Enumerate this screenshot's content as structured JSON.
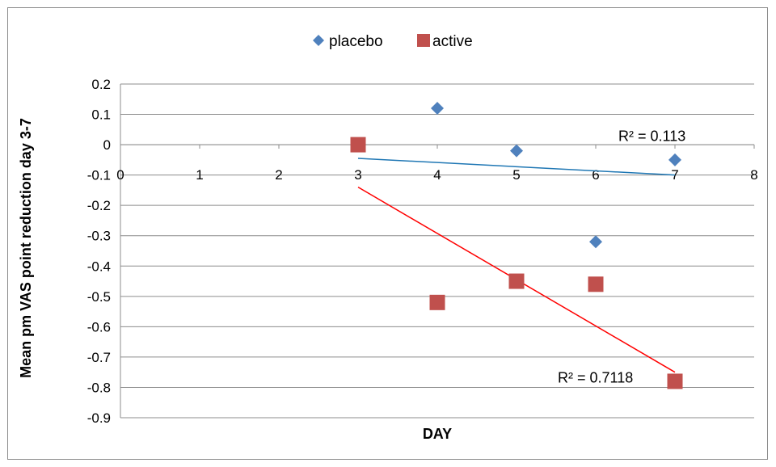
{
  "chart_data": {
    "type": "scatter",
    "xlabel": "DAY",
    "ylabel": "Mean pm VAS point reduction day 3-7",
    "xlim": [
      0,
      8
    ],
    "ylim": [
      -0.9,
      0.2
    ],
    "x_ticks": [
      "0",
      "1",
      "2",
      "3",
      "4",
      "5",
      "6",
      "7",
      "8"
    ],
    "y_ticks": [
      "0.2",
      "0.1",
      "0",
      "-0.1",
      "-0.2",
      "-0.3",
      "-0.4",
      "-0.5",
      "-0.6",
      "-0.7",
      "-0.8",
      "-0.9"
    ],
    "grid": "horizontal",
    "legend_position": "top",
    "series": [
      {
        "name": "placebo",
        "marker": "diamond",
        "color": "#4f81bd",
        "points": [
          [
            4,
            0.12
          ],
          [
            5,
            -0.02
          ],
          [
            6,
            -0.32
          ],
          [
            7,
            -0.05
          ]
        ],
        "trendline": {
          "x": [
            3,
            7
          ],
          "y": [
            -0.045,
            -0.1
          ],
          "color": "#1f77b4",
          "r2_label": "R² = 0.113"
        }
      },
      {
        "name": "active",
        "marker": "square",
        "color": "#c0504d",
        "points": [
          [
            3,
            0.0
          ],
          [
            4,
            -0.52
          ],
          [
            5,
            -0.45
          ],
          [
            6,
            -0.46
          ],
          [
            7,
            -0.78
          ]
        ],
        "trendline": {
          "x": [
            3,
            7
          ],
          "y": [
            -0.14,
            -0.75
          ],
          "color": "#ff0000",
          "r2_label": "R² = 0.7118"
        }
      }
    ]
  }
}
